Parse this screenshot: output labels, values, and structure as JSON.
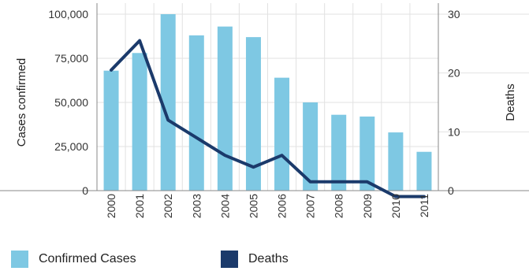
{
  "chart_data": {
    "type": "bar",
    "categories": [
      "2000",
      "2001",
      "2002",
      "2003",
      "2004",
      "2005",
      "2006",
      "2007",
      "2008",
      "2009",
      "2010",
      "2011"
    ],
    "series": [
      {
        "name": "Confirmed Cases",
        "type": "bar",
        "axis": "left",
        "color": "#7ec8e3",
        "values": [
          68000,
          78000,
          100000,
          88000,
          93000,
          87000,
          64000,
          50000,
          43000,
          42000,
          33000,
          22000
        ]
      },
      {
        "name": "Deaths",
        "type": "line",
        "axis": "right",
        "color": "#1b3a6b",
        "values": [
          20.5,
          25.5,
          12,
          9,
          6,
          4,
          6,
          1.5,
          1.5,
          1.5,
          -1,
          -1
        ]
      }
    ],
    "ylabel": "Cases confirmed",
    "y2label": "Deaths",
    "ylim": [
      0,
      100000
    ],
    "y2lim": [
      0,
      30
    ],
    "yticks": [
      0,
      25000,
      50000,
      75000,
      100000
    ],
    "ytick_labels": [
      "0",
      "25,000",
      "50,000",
      "75,000",
      "100,000"
    ],
    "y2ticks": [
      0,
      10,
      20,
      30
    ],
    "y2tick_labels": [
      "0",
      "10",
      "20",
      "30"
    ],
    "grid": true,
    "legend_position": "bottom"
  }
}
